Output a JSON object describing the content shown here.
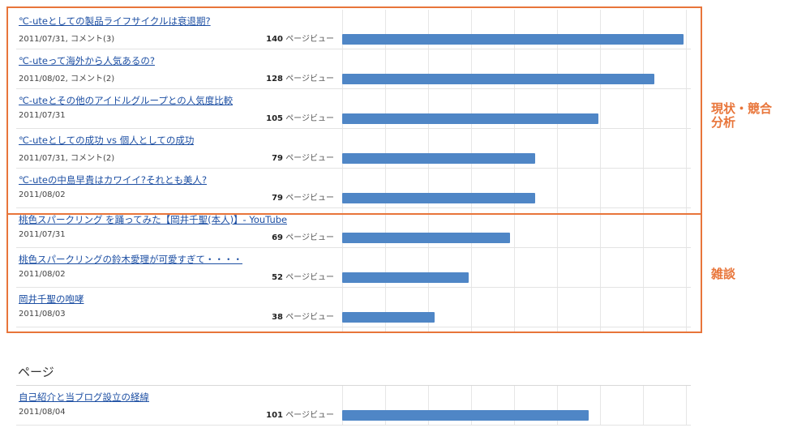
{
  "page_views_suffix": "ページビュー",
  "groups": [
    {
      "label_line1": "現状・競合",
      "label_line2": "分析"
    },
    {
      "label_line1": "雑談",
      "label_line2": ""
    }
  ],
  "posts": [
    {
      "title": "℃-uteとしての製品ライフサイクルは衰退期?",
      "meta": "2011/07/31, コメント(3)",
      "views": 140
    },
    {
      "title": "℃-uteって海外から人気あるの?",
      "meta": "2011/08/02, コメント(2)",
      "views": 128
    },
    {
      "title": "℃-uteとその他のアイドルグループとの人気度比較",
      "meta": "2011/07/31",
      "views": 105
    },
    {
      "title": "℃-uteとしての成功 vs 個人としての成功",
      "meta": "2011/07/31, コメント(2)",
      "views": 79
    },
    {
      "title": "℃-uteの中島早貴はカワイイ?それとも美人?",
      "meta": "2011/08/02",
      "views": 79
    },
    {
      "title": "桃色スパークリング を踊ってみた【岡井千聖(本人)】- YouTube",
      "meta": "2011/07/31",
      "views": 69
    },
    {
      "title": "桃色スパークリングの鈴木愛理が可愛すぎて・・・・",
      "meta": "2011/08/02",
      "views": 52
    },
    {
      "title": "岡井千聖の咆哮",
      "meta": "2011/08/03",
      "views": 38
    }
  ],
  "pages_section": {
    "title": "ページ",
    "items": [
      {
        "title": "自己紹介と当ブログ設立の経緯",
        "meta": "2011/08/04",
        "views": 101
      }
    ]
  }
}
